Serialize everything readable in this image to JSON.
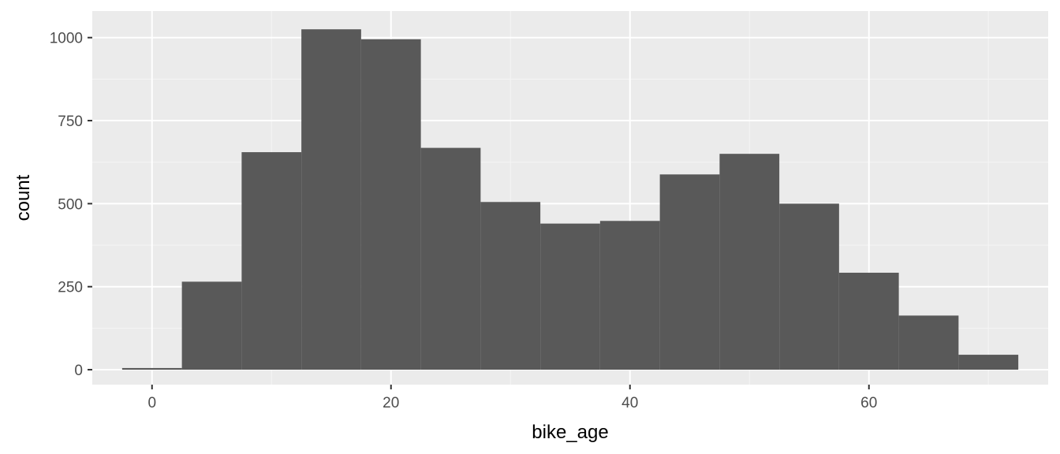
{
  "chart_data": {
    "type": "histogram",
    "title": "",
    "xlabel": "bike_age",
    "ylabel": "count",
    "xlim": [
      -5,
      75
    ],
    "ylim": [
      -45,
      1080
    ],
    "x_ticks": [
      0,
      20,
      40,
      60
    ],
    "y_ticks": [
      0,
      250,
      500,
      750,
      1000
    ],
    "x_minor_ticks": [
      10,
      30,
      50,
      70
    ],
    "y_minor_ticks": [
      125,
      375,
      625,
      875
    ],
    "grid": true,
    "legend": "none",
    "bins": [
      {
        "x_min": -2.5,
        "x_max": 2.5,
        "count": 5
      },
      {
        "x_min": 2.5,
        "x_max": 7.5,
        "count": 265
      },
      {
        "x_min": 7.5,
        "x_max": 12.5,
        "count": 655
      },
      {
        "x_min": 12.5,
        "x_max": 17.5,
        "count": 1025
      },
      {
        "x_min": 17.5,
        "x_max": 22.5,
        "count": 995
      },
      {
        "x_min": 22.5,
        "x_max": 27.5,
        "count": 668
      },
      {
        "x_min": 27.5,
        "x_max": 32.5,
        "count": 505
      },
      {
        "x_min": 32.5,
        "x_max": 37.5,
        "count": 440
      },
      {
        "x_min": 37.5,
        "x_max": 42.5,
        "count": 448
      },
      {
        "x_min": 42.5,
        "x_max": 47.5,
        "count": 588
      },
      {
        "x_min": 47.5,
        "x_max": 52.5,
        "count": 650
      },
      {
        "x_min": 52.5,
        "x_max": 57.5,
        "count": 500
      },
      {
        "x_min": 57.5,
        "x_max": 62.5,
        "count": 292
      },
      {
        "x_min": 62.5,
        "x_max": 67.5,
        "count": 163
      },
      {
        "x_min": 67.5,
        "x_max": 72.5,
        "count": 45
      }
    ],
    "colors": {
      "panel_background": "#ebebeb",
      "grid_major": "#ffffff",
      "grid_minor": "#f5f5f5",
      "bar_fill": "#595959",
      "tick_text": "#4d4d4d",
      "tick_mark": "#333333",
      "axis_title": "#000000"
    }
  }
}
